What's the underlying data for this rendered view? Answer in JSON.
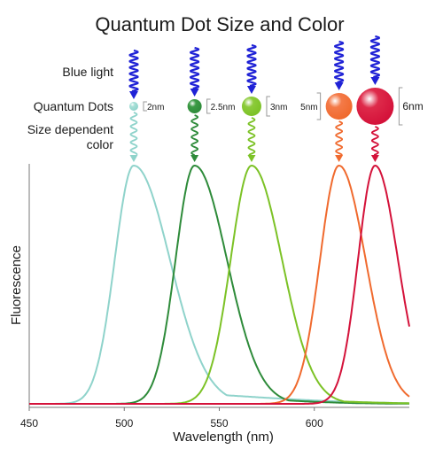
{
  "figure": {
    "title": "Quantum Dot Size and Color",
    "row_labels": {
      "blue_light": "Blue light",
      "quantum_dots": "Quantum Dots",
      "size_dependent_1": "Size dependent",
      "size_dependent_2": "color"
    },
    "excitation_color": "#1f22d6"
  },
  "chart_data": {
    "type": "line",
    "xlabel": "Wavelength (nm)",
    "ylabel": "Fluorescence",
    "x_ticks": [
      "450",
      "500",
      "550",
      "600"
    ],
    "xlim": [
      450,
      650
    ],
    "series": [
      {
        "size_label": "2nm",
        "color": "#8fd3cb",
        "peak": 505,
        "sigma_left": 10,
        "sigma_right": 19,
        "tail": 0.05,
        "tail_sigma": 60,
        "dot_radius_px": 5,
        "dot_color": "#a7e0d7"
      },
      {
        "size_label": "2.5nm",
        "color": "#2e8b3a",
        "peak": 537,
        "sigma_left": 10,
        "sigma_right": 17,
        "tail": 0.03,
        "tail_sigma": 40,
        "dot_radius_px": 8,
        "dot_color": "#3c9b45"
      },
      {
        "size_label": "3nm",
        "color": "#7cc226",
        "peak": 567,
        "sigma_left": 11,
        "sigma_right": 16,
        "tail": 0.02,
        "tail_sigma": 40,
        "dot_radius_px": 11,
        "dot_color": "#8ccb3a"
      },
      {
        "size_label": "5nm",
        "color": "#f06a2e",
        "peak": 613,
        "sigma_left": 10,
        "sigma_right": 14,
        "tail": 0.0,
        "tail_sigma": 30,
        "dot_radius_px": 15,
        "dot_color": "#f47a48"
      },
      {
        "size_label": "6nm",
        "color": "#d4123a",
        "peak": 632,
        "sigma_left": 9,
        "sigma_right": 12,
        "tail": 0.0,
        "tail_sigma": 30,
        "dot_radius_px": 21,
        "dot_color": "#de2a4a"
      }
    ]
  }
}
